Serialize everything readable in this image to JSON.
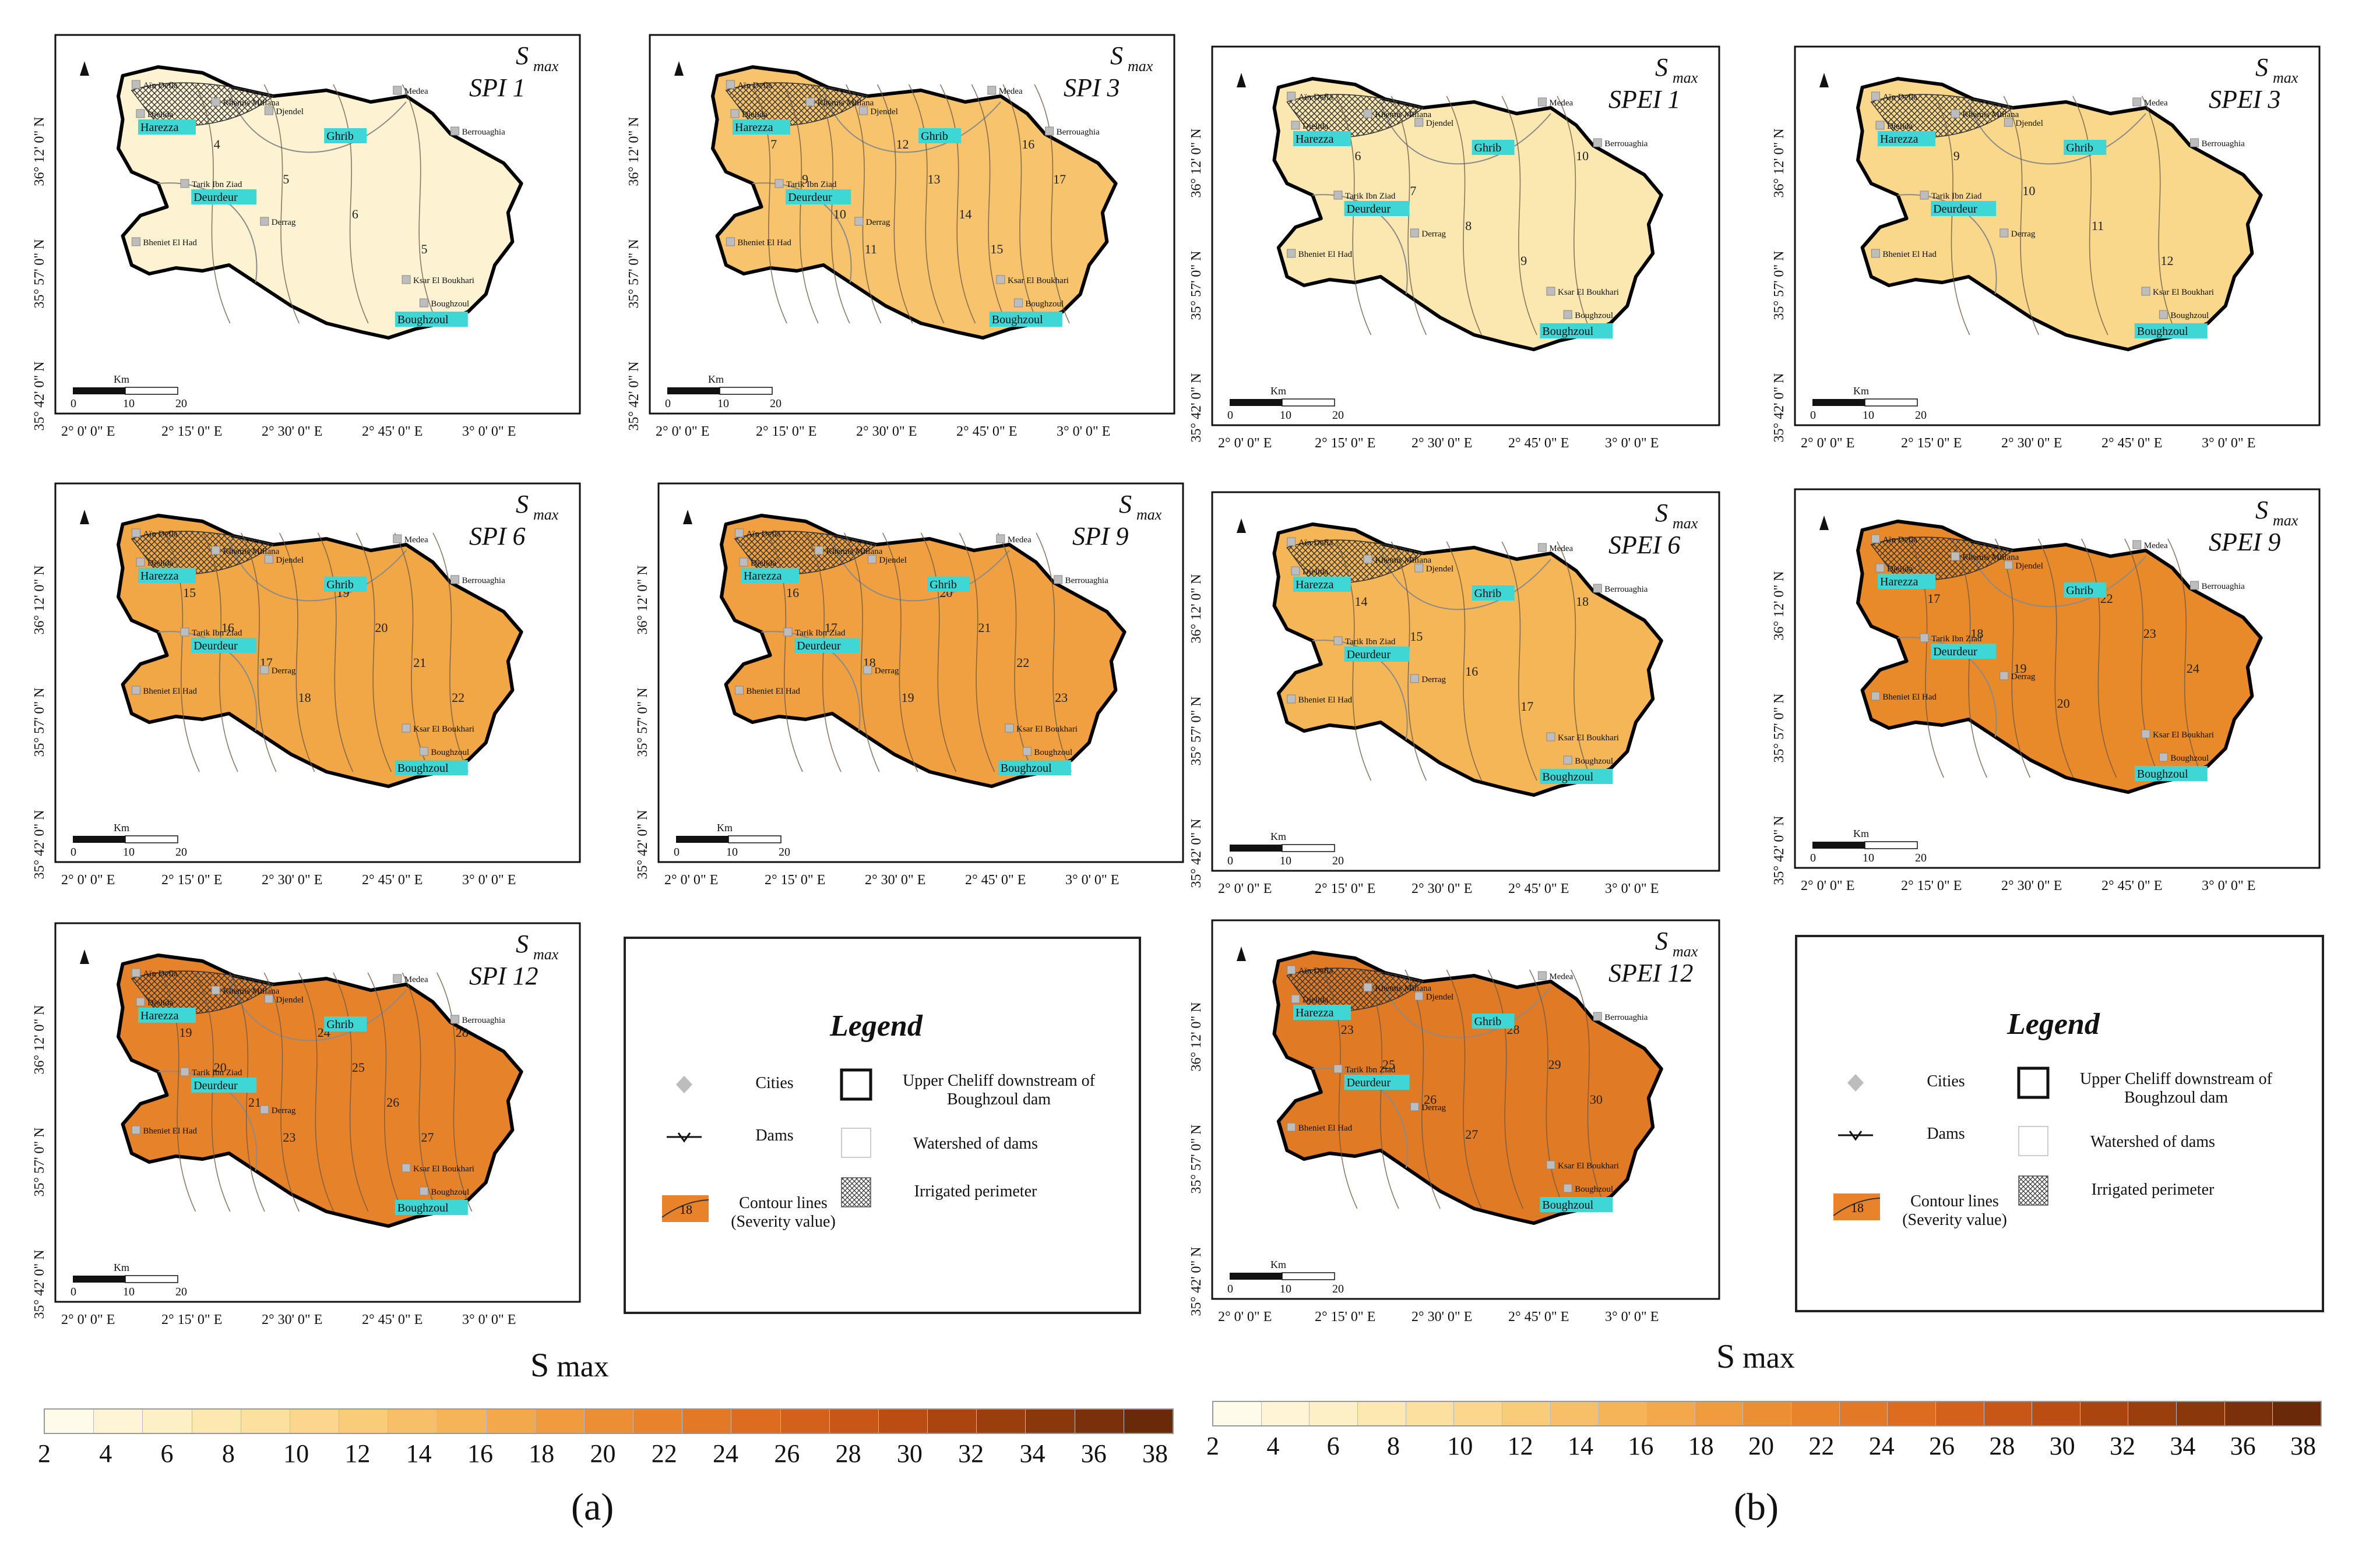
{
  "panels": [
    {
      "title": "SPI 1",
      "max": "S",
      "max_sub": "max",
      "fill": "#fdf3d3",
      "lines": [
        "4",
        "5",
        "6",
        "5"
      ],
      "lon": [
        "2° 0' 0\" E",
        "2° 15' 0\" E",
        "2° 30' 0\" E",
        "2° 45' 0\" E",
        "3° 0' 0\" E"
      ],
      "lat": [
        "36° 12' 0\" N",
        "35° 57' 0\" N",
        "35° 42' 0\" N"
      ],
      "scale_unit": "Km",
      "scale": [
        "0",
        "10",
        "20"
      ]
    },
    {
      "title": "SPI 3",
      "max": "S",
      "max_sub": "max",
      "fill": "#f7c36c",
      "lines": [
        "7",
        "9",
        "10",
        "11",
        "12",
        "13",
        "14",
        "15",
        "16",
        "17"
      ],
      "lon": [
        "2° 0' 0\" E",
        "2° 15' 0\" E",
        "2° 30' 0\" E",
        "2° 45' 0\" E",
        "3° 0' 0\" E"
      ],
      "lat": [
        "36° 12' 0\" N",
        "35° 57' 0\" N",
        "35° 42' 0\" N"
      ],
      "scale_unit": "Km",
      "scale": [
        "0",
        "10",
        "20"
      ]
    },
    {
      "title": "SPEI 1",
      "max": "S",
      "max_sub": "max",
      "fill": "#fbe8b0",
      "lines": [
        "6",
        "7",
        "8",
        "9",
        "10"
      ],
      "lon": [
        "2° 0' 0\" E",
        "2° 15' 0\" E",
        "2° 30' 0\" E",
        "2° 45' 0\" E",
        "3° 0' 0\" E"
      ],
      "lat": [
        "36° 12' 0\" N",
        "35° 57' 0\" N",
        "35° 42' 0\" N"
      ],
      "scale_unit": "Km",
      "scale": [
        "0",
        "10",
        "20"
      ]
    },
    {
      "title": "SPEI 3",
      "max": "S",
      "max_sub": "max",
      "fill": "#f9d78b",
      "lines": [
        "9",
        "10",
        "11",
        "12"
      ],
      "lon": [
        "2° 0' 0\" E",
        "2° 15' 0\" E",
        "2° 30' 0\" E",
        "2° 45' 0\" E",
        "3° 0' 0\" E"
      ],
      "lat": [
        "36° 12' 0\" N",
        "35° 57' 0\" N",
        "35° 42' 0\" N"
      ],
      "scale_unit": "Km",
      "scale": [
        "0",
        "10",
        "20"
      ]
    },
    {
      "title": "SPI 6",
      "max": "S",
      "max_sub": "max",
      "fill": "#f1a745",
      "lines": [
        "15",
        "16",
        "17",
        "18",
        "19",
        "20",
        "21",
        "22"
      ],
      "lon": [
        "2° 0' 0\" E",
        "2° 15' 0\" E",
        "2° 30' 0\" E",
        "2° 45' 0\" E",
        "3° 0' 0\" E"
      ],
      "lat": [
        "36° 12' 0\" N",
        "35° 57' 0\" N",
        "35° 42' 0\" N"
      ],
      "scale_unit": "Km",
      "scale": [
        "0",
        "10",
        "20"
      ]
    },
    {
      "title": "SPI 9",
      "max": "S",
      "max_sub": "max",
      "fill": "#f0a040",
      "lines": [
        "16",
        "17",
        "18",
        "19",
        "20",
        "21",
        "22",
        "23"
      ],
      "lon": [
        "2° 0' 0\" E",
        "2° 15' 0\" E",
        "2° 30' 0\" E",
        "2° 45' 0\" E",
        "3° 0' 0\" E"
      ],
      "lat": [
        "36° 12' 0\" N",
        "35° 57' 0\" N",
        "35° 42' 0\" N"
      ],
      "scale_unit": "Km",
      "scale": [
        "0",
        "10",
        "20"
      ]
    },
    {
      "title": "SPEI 6",
      "max": "S",
      "max_sub": "max",
      "fill": "#f5b658",
      "lines": [
        "14",
        "15",
        "16",
        "17",
        "18"
      ],
      "lon": [
        "2° 0' 0\" E",
        "2° 15' 0\" E",
        "2° 30' 0\" E",
        "2° 45' 0\" E",
        "3° 0' 0\" E"
      ],
      "lat": [
        "36° 12' 0\" N",
        "35° 57' 0\" N",
        "35° 42' 0\" N"
      ],
      "scale_unit": "Km",
      "scale": [
        "0",
        "10",
        "20"
      ]
    },
    {
      "title": "SPEI 9",
      "max": "S",
      "max_sub": "max",
      "fill": "#e8892a",
      "lines": [
        "17",
        "18",
        "19",
        "20",
        "22",
        "23",
        "24"
      ],
      "lon": [
        "2° 0' 0\" E",
        "2° 15' 0\" E",
        "2° 30' 0\" E",
        "2° 45' 0\" E",
        "3° 0' 0\" E"
      ],
      "lat": [
        "36° 12' 0\" N",
        "35° 57' 0\" N",
        "35° 42' 0\" N"
      ],
      "scale_unit": "Km",
      "scale": [
        "0",
        "10",
        "20"
      ]
    },
    {
      "title": "SPI 12",
      "max": "S",
      "max_sub": "max",
      "fill": "#e6832a",
      "lines": [
        "19",
        "20",
        "21",
        "23",
        "24",
        "25",
        "26",
        "27",
        "28"
      ],
      "lon": [
        "2° 0' 0\" E",
        "2° 15' 0\" E",
        "2° 30' 0\" E",
        "2° 45' 0\" E",
        "3° 0' 0\" E"
      ],
      "lat": [
        "36° 12' 0\" N",
        "35° 57' 0\" N",
        "35° 42' 0\" N"
      ],
      "scale_unit": "Km",
      "scale": [
        "0",
        "10",
        "20"
      ]
    },
    {
      "title": "SPEI 12",
      "max": "S",
      "max_sub": "max",
      "fill": "#e07a24",
      "lines": [
        "23",
        "25",
        "26",
        "27",
        "28",
        "29",
        "30"
      ],
      "lon": [
        "2° 0' 0\" E",
        "2° 15' 0\" E",
        "2° 30' 0\" E",
        "2° 45' 0\" E",
        "3° 0' 0\" E"
      ],
      "lat": [
        "36° 12' 0\" N",
        "35° 57' 0\" N",
        "35° 42' 0\" N"
      ],
      "scale_unit": "Km",
      "scale": [
        "0",
        "10",
        "20"
      ]
    }
  ],
  "places": {
    "cities": [
      "Aïn Defla",
      "Khemis Miliana",
      "Djendel",
      "Djelida",
      "Medea",
      "Berrouaghia",
      "Tarik Ibn Ziad",
      "Derrag",
      "Bheniet El Had",
      "Ksar El Boukhari",
      "Boughzoul"
    ],
    "dams": [
      "Harezza",
      "Ghrib",
      "Deurdeur",
      "Boughzoul"
    ]
  },
  "legend": {
    "title": "Legend",
    "cities": "Cities",
    "dams": "Dams",
    "contour": "Contour lines (Severity value)",
    "contour_sample": "18",
    "boundary": "Upper Cheliff downstream of Boughzoul dam",
    "watershed": "Watershed of dams",
    "irrigated": "Irrigated perimeter"
  },
  "colorbar": {
    "title": "S",
    "title_sub": "max",
    "ticks": [
      "2",
      "4",
      "6",
      "8",
      "10",
      "12",
      "14",
      "16",
      "18",
      "20",
      "22",
      "24",
      "26",
      "28",
      "30",
      "32",
      "34",
      "36",
      "38"
    ],
    "colors": [
      "#fffbea",
      "#fff5d6",
      "#fef0c6",
      "#fde8b2",
      "#fce0a0",
      "#fbd68c",
      "#f9cc7a",
      "#f7c068",
      "#f5b458",
      "#f3a84b",
      "#f09b3e",
      "#ec8e33",
      "#e8832b",
      "#e37826",
      "#dd6c20",
      "#d4611b",
      "#c85616",
      "#bb4d13",
      "#aa4510",
      "#9a3e0e",
      "#8a370c",
      "#79300b",
      "#6a2a0a"
    ]
  },
  "sublabels": [
    "(a)",
    "(b)"
  ]
}
